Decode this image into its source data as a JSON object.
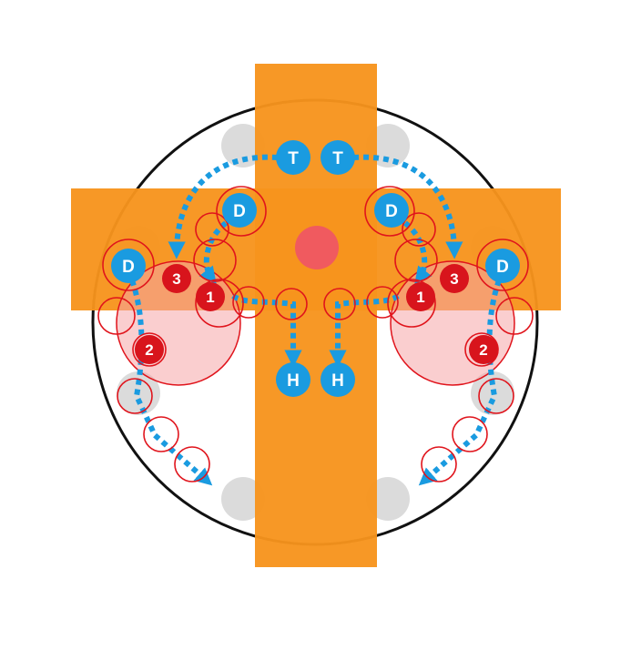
{
  "colors": {
    "background": "#ffffff",
    "arena_outline": "#111111",
    "platform": "#f7941d",
    "center_marker": "#f05a5f",
    "safe_zone_fill": "#f5a5a7",
    "safe_zone_stroke": "#e0141c",
    "pillar_marker": "#cfcfcf",
    "role_marker": "#1a9be0",
    "step_marker": "#d8141c",
    "path_arrow": "#1a9be0",
    "ring_marker": "#e0141c",
    "label_text": "#ffffff"
  },
  "roles": {
    "tank_left": "T",
    "tank_right": "T",
    "healer_left": "H",
    "healer_right": "H",
    "dps_upper_left": "D",
    "dps_upper_right": "D",
    "dps_outer_left": "D",
    "dps_outer_right": "D"
  },
  "steps": {
    "left_1": "1",
    "left_2": "2",
    "left_3": "3",
    "right_1": "1",
    "right_2": "2",
    "right_3": "3"
  },
  "icons": {
    "path_arrow": "dotted-arrow-icon",
    "ring": "red-ring-marker-icon",
    "pillar": "grey-pillar-marker-icon"
  }
}
